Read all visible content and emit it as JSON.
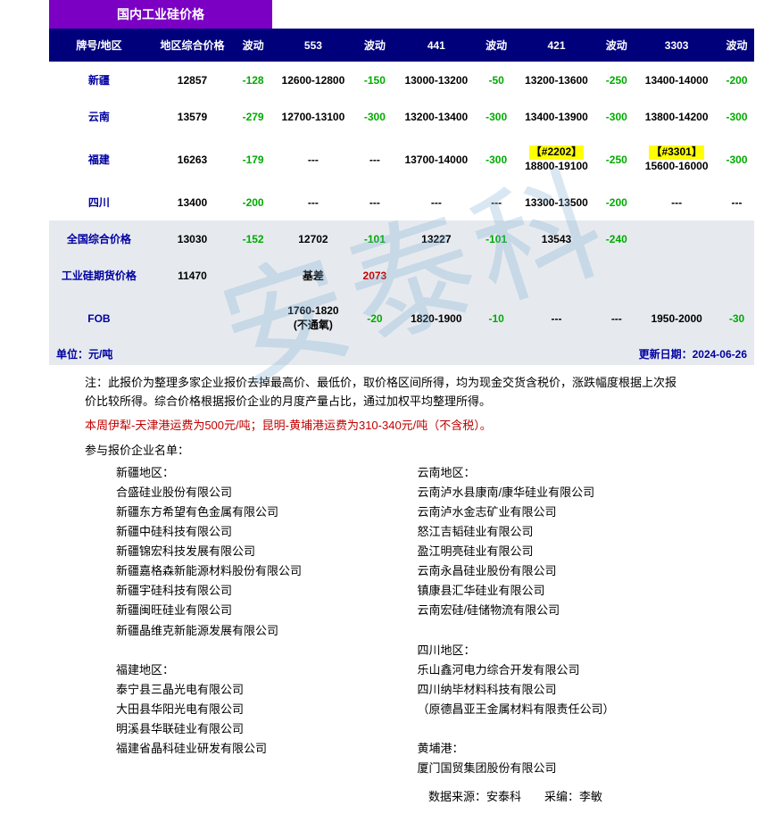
{
  "header_title": "国内工业硅价格",
  "columns": [
    "牌号/地区",
    "地区综合价格",
    "波动",
    "553",
    "波动",
    "441",
    "波动",
    "421",
    "波动",
    "3303",
    "波动"
  ],
  "rows": [
    {
      "label": "新疆",
      "zonghe": "12857",
      "zh_chg": "-128",
      "c553": "12600-12800",
      "c553_chg": "-150",
      "c441": "13000-13200",
      "c441_chg": "-50",
      "c421": "13200-13600",
      "c421_chg": "-250",
      "c3303": "13400-14000",
      "c3303_chg": "-200"
    },
    {
      "label": "云南",
      "zonghe": "13579",
      "zh_chg": "-279",
      "c553": "12700-13100",
      "c553_chg": "-300",
      "c441": "13200-13400",
      "c441_chg": "-300",
      "c421": "13400-13900",
      "c421_chg": "-300",
      "c3303": "13800-14200",
      "c3303_chg": "-300"
    },
    {
      "label": "福建",
      "zonghe": "16263",
      "zh_chg": "-179",
      "c553": "---",
      "c553_chg": "---",
      "c441": "13700-14000",
      "c441_chg": "-300",
      "c421_hl": "【#2202】",
      "c421": "18800-19100",
      "c421_chg": "-250",
      "c3303_hl": "【#3301】",
      "c3303": "15600-16000",
      "c3303_chg": "-300"
    },
    {
      "label": "四川",
      "zonghe": "13400",
      "zh_chg": "-200",
      "c553": "---",
      "c553_chg": "---",
      "c441": "---",
      "c441_chg": "---",
      "c421": "13300-13500",
      "c421_chg": "-200",
      "c3303": "---",
      "c3303_chg": "---"
    }
  ],
  "summary": [
    {
      "label": "全国综合价格",
      "v1": "13030",
      "c1": "-152",
      "v2": "12702",
      "c2": "-101",
      "v3": "13227",
      "c3": "-101",
      "v4": "13543",
      "c4": "-240",
      "v5": "",
      "c5": ""
    },
    {
      "label": "工业硅期货价格",
      "v1": "11470",
      "c1": "",
      "v2": "基差",
      "c2": "2073",
      "v3": "",
      "c3": "",
      "v4": "",
      "c4": "",
      "v5": "",
      "c5": ""
    },
    {
      "label": "FOB",
      "v1": "",
      "c1": "",
      "v2": "1760-1820",
      "v2b": "(不通氧)",
      "c2": "-20",
      "v3": "1820-1900",
      "c3": "-10",
      "v4": "---",
      "c4": "---",
      "v5": "1950-2000",
      "c5": "-30"
    }
  ],
  "unit_label": "单位：元/吨",
  "update_label": "更新日期：",
  "update_date": "2024-06-26",
  "note_prefix": "注：",
  "note_body": "此报价为整理多家企业报价去掉最高价、最低价，取价格区间所得，均为现金交货含税价，涨跌幅度根据上次报价比较所得。综合价格根据报价企业的月度产量占比，通过加权平均整理所得。",
  "shipping_note": "本周伊犁-天津港运费为500元/吨；昆明-黄埔港运费为310-340元/吨（不含税）。",
  "companies_title": "参与报价企业名单：",
  "left_col": {
    "h1": "新疆地区：",
    "l": [
      "合盛硅业股份有限公司",
      "新疆东方希望有色金属有限公司",
      "新疆中硅科技有限公司",
      "新疆锦宏科技发展有限公司",
      "新疆嘉格森新能源材料股份有限公司",
      "新疆宇硅科技有限公司",
      "新疆闽旺硅业有限公司",
      "新疆晶维克新能源发展有限公司"
    ],
    "h2": "福建地区：",
    "l2": [
      "泰宁县三晶光电有限公司",
      "大田县华阳光电有限公司",
      "明溪县华联硅业有限公司",
      "福建省晶科硅业研发有限公司"
    ]
  },
  "right_col": {
    "h1": "云南地区：",
    "l": [
      "云南泸水县康南/康华硅业有限公司",
      "云南泸水金志矿业有限公司",
      "怒江吉韬硅业有限公司",
      "盈江明亮硅业有限公司",
      "云南永昌硅业股份有限公司",
      "镇康县汇华硅业有限公司",
      "云南宏硅/硅储物流有限公司"
    ],
    "h2": "四川地区：",
    "l2": [
      "乐山鑫河电力综合开发有限公司",
      "四川纳毕材料科技有限公司",
      "（原德昌亚王金属材料有限责任公司）"
    ],
    "h3": "黄埔港：",
    "l3": [
      "厦门国贸集团股份有限公司"
    ]
  },
  "credit": "数据来源：安泰科　　采编：李敏",
  "watermark": "安泰科",
  "colors": {
    "header_bg": "#7b00c4",
    "th_bg": "#00007b",
    "neg": "#00aa00",
    "pos": "#c00000",
    "highlight": "#ffff00",
    "label_blue": "#0000a0",
    "summary_bg": "#e6eaef"
  }
}
